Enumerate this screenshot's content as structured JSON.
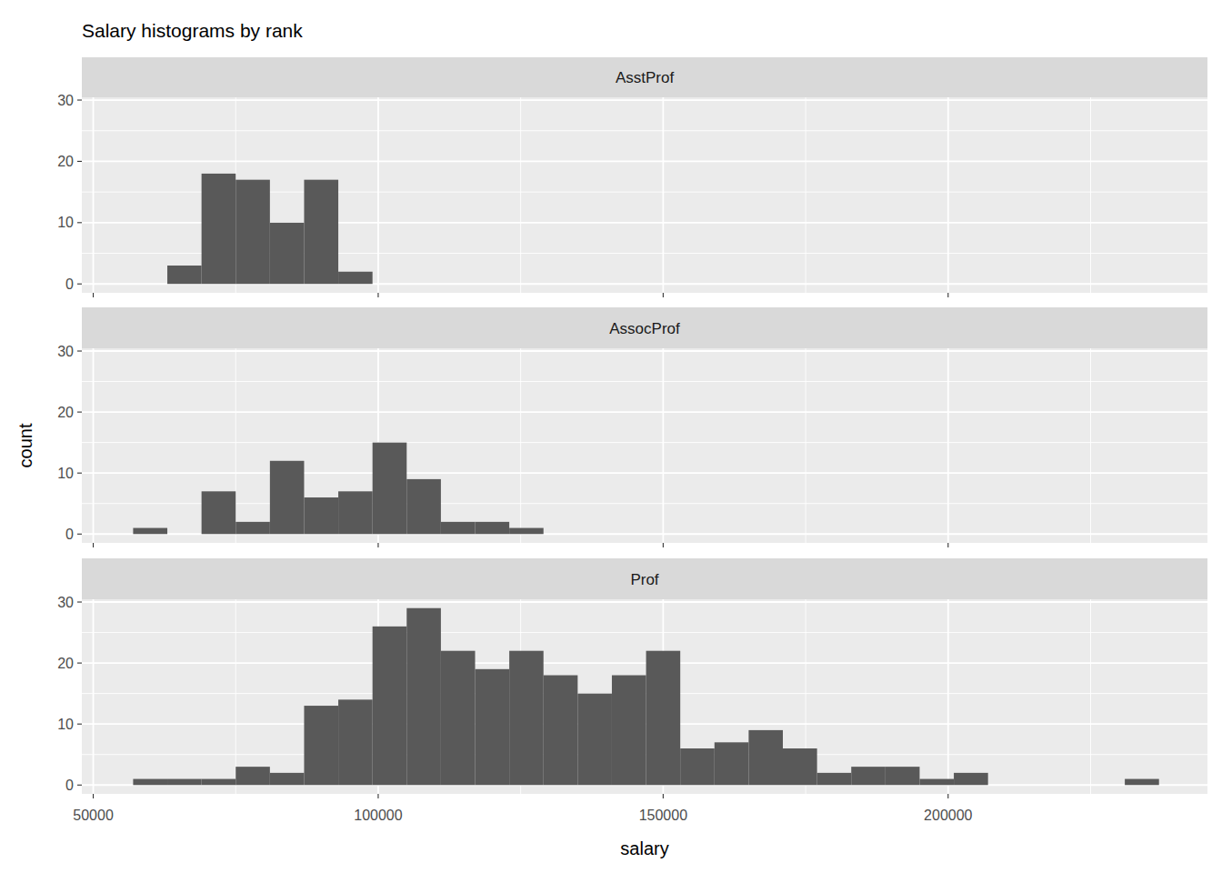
{
  "title": "Salary histograms by rank",
  "x_label": "salary",
  "y_label": "count",
  "chart_data": [
    {
      "type": "histogram",
      "title": "AsstProf",
      "color": "#595959",
      "grid": true,
      "tick_labels": "y",
      "bins": [
        57000,
        63000,
        69000,
        75000,
        81000,
        87000,
        93000,
        99000,
        105000,
        111000,
        117000,
        123000,
        129000,
        135000,
        141000,
        147000,
        153000,
        159000,
        165000,
        171000,
        177000,
        183000,
        189000,
        195000,
        201000,
        207000,
        213000,
        219000,
        225000,
        231000,
        237000
      ],
      "values": [
        0,
        3,
        18,
        17,
        10,
        17,
        2,
        0,
        0,
        0,
        0,
        0,
        0,
        0,
        0,
        0,
        0,
        0,
        0,
        0,
        0,
        0,
        0,
        0,
        0,
        0,
        0,
        0,
        0,
        0
      ],
      "xlim": [
        48000,
        245500
      ],
      "xticks": [
        50000,
        100000,
        150000,
        200000
      ],
      "ylim": [
        -1.45,
        30.45
      ],
      "yticks": [
        0,
        10,
        20,
        30
      ]
    },
    {
      "type": "histogram",
      "title": "AssocProf",
      "color": "#595959",
      "grid": true,
      "tick_labels": "y",
      "bins": [
        57000,
        63000,
        69000,
        75000,
        81000,
        87000,
        93000,
        99000,
        105000,
        111000,
        117000,
        123000,
        129000,
        135000,
        141000,
        147000,
        153000,
        159000,
        165000,
        171000,
        177000,
        183000,
        189000,
        195000,
        201000,
        207000,
        213000,
        219000,
        225000,
        231000,
        237000
      ],
      "values": [
        1,
        0,
        7,
        2,
        12,
        6,
        7,
        15,
        9,
        2,
        2,
        1,
        0,
        0,
        0,
        0,
        0,
        0,
        0,
        0,
        0,
        0,
        0,
        0,
        0,
        0,
        0,
        0,
        0,
        0
      ],
      "xlim": [
        48000,
        245500
      ],
      "xticks": [
        50000,
        100000,
        150000,
        200000
      ],
      "ylim": [
        -1.45,
        30.45
      ],
      "yticks": [
        0,
        10,
        20,
        30
      ]
    },
    {
      "type": "histogram",
      "title": "Prof",
      "color": "#595959",
      "grid": true,
      "bins": [
        57000,
        63000,
        69000,
        75000,
        81000,
        87000,
        93000,
        99000,
        105000,
        111000,
        117000,
        123000,
        129000,
        135000,
        141000,
        147000,
        153000,
        159000,
        165000,
        171000,
        177000,
        183000,
        189000,
        195000,
        201000,
        207000,
        213000,
        219000,
        225000,
        231000,
        237000
      ],
      "values": [
        1,
        1,
        1,
        3,
        2,
        13,
        14,
        26,
        29,
        22,
        19,
        22,
        18,
        15,
        18,
        22,
        6,
        7,
        9,
        6,
        2,
        3,
        3,
        1,
        2,
        0,
        0,
        0,
        0,
        1
      ],
      "xlim": [
        48000,
        245500
      ],
      "xticks": [
        50000,
        100000,
        150000,
        200000
      ],
      "ylim": [
        -1.45,
        30.45
      ],
      "yticks": [
        0,
        10,
        20,
        30
      ]
    }
  ]
}
